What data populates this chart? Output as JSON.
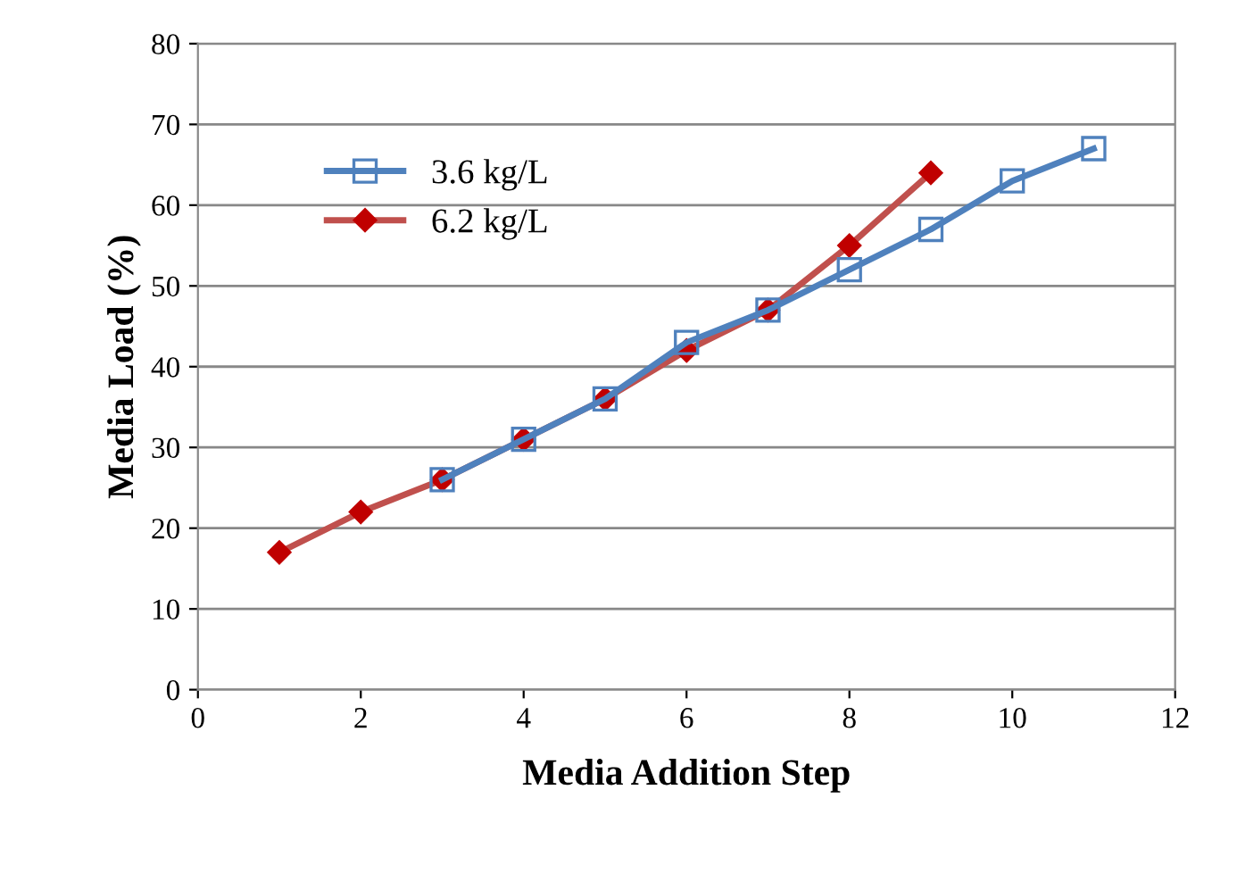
{
  "chart_data": {
    "type": "line",
    "xlabel": "Media Addition Step",
    "ylabel": "Media Load (%)",
    "xlim": [
      0,
      12
    ],
    "xticks": [
      0,
      2,
      4,
      6,
      8,
      10,
      12
    ],
    "ylim": [
      0,
      80
    ],
    "yticks": [
      0,
      10,
      20,
      30,
      40,
      50,
      60,
      70,
      80
    ],
    "grid": "y",
    "legend": "top left",
    "line_style": "solid",
    "series": [
      {
        "name": "3.6 kg/L",
        "color": "#4f81bd",
        "marker": "square",
        "x": [
          3,
          4,
          5,
          6,
          7,
          8,
          9,
          10,
          11
        ],
        "values": [
          26,
          31,
          36,
          43,
          47,
          52,
          57,
          63,
          67
        ]
      },
      {
        "name": "6.2 kg/L",
        "color": "#c0504d",
        "marker": "diamond",
        "x": [
          1,
          2,
          3,
          4,
          5,
          6,
          7,
          8,
          9
        ],
        "values": [
          17,
          22,
          26,
          31,
          36,
          42,
          47,
          55,
          64
        ]
      }
    ]
  }
}
